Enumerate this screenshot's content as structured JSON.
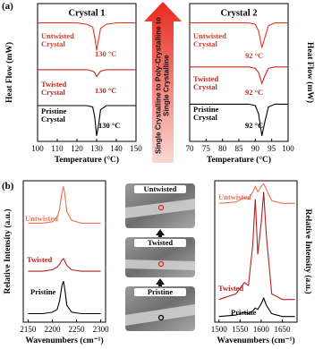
{
  "panel_labels": [
    "(a)",
    "(b)"
  ],
  "arrow_text": "Single Crystalline to Poly-Crystalline to Single Crystalline",
  "photos": {
    "items": [
      "Untwisted",
      "Twisted",
      "Pristine"
    ]
  },
  "chart_data": [
    {
      "type": "line",
      "title": "Crystal 1",
      "x_label": "Temperature (°C)",
      "y_label": "Heat Flow (mW)",
      "x": [
        100,
        110,
        120,
        125,
        128,
        129,
        130,
        131,
        132,
        135,
        140,
        150
      ],
      "xlim": [
        100,
        150
      ],
      "xticks": [
        100,
        110,
        120,
        130,
        140,
        150
      ],
      "ylim": [
        0,
        10
      ],
      "series": [
        {
          "name": "Untwisted Crystal",
          "color": "#e8321e",
          "peak_label": "130 °C",
          "values": [
            8.6,
            8.6,
            8.6,
            8.5,
            8.3,
            7.6,
            6.6,
            7.4,
            8.2,
            8.5,
            8.6,
            8.6
          ]
        },
        {
          "name": "Twisted Crystal",
          "color": "#c0281c",
          "peak_label": "130 °C",
          "values": [
            5.2,
            5.2,
            5.2,
            5.2,
            5.1,
            5.0,
            4.7,
            4.9,
            5.1,
            5.2,
            5.2,
            5.2
          ]
        },
        {
          "name": "Pristine Crystal",
          "color": "#000000",
          "peak_label": "130 °C",
          "values": [
            2.6,
            2.6,
            2.6,
            2.6,
            2.5,
            1.8,
            0.4,
            1.2,
            2.3,
            2.6,
            2.6,
            2.6
          ]
        }
      ]
    },
    {
      "type": "line",
      "title": "Crystal 2",
      "x_label": "Temperature (°C)",
      "y_label": "Heat Flow (mW)",
      "x": [
        70,
        80,
        88,
        90,
        91,
        92,
        93,
        94,
        96,
        100
      ],
      "xlim": [
        70,
        100
      ],
      "xticks": [
        70,
        75,
        80,
        85,
        90,
        95,
        100
      ],
      "ylim": [
        0,
        10
      ],
      "series": [
        {
          "name": "Untwisted Crystal",
          "color": "#e8321e",
          "peak_label": "92 °C",
          "values": [
            8.6,
            8.6,
            8.6,
            8.5,
            8.0,
            6.8,
            7.6,
            8.4,
            8.6,
            8.6
          ]
        },
        {
          "name": "Twisted Crystal",
          "color": "#c0281c",
          "peak_label": "92 °C",
          "values": [
            5.4,
            5.4,
            5.4,
            5.3,
            5.0,
            4.2,
            4.8,
            5.3,
            5.4,
            5.4
          ]
        },
        {
          "name": "Pristine Crystal",
          "color": "#000000",
          "peak_label": "92 °C",
          "values": [
            2.7,
            2.7,
            2.7,
            2.6,
            2.0,
            0.4,
            1.5,
            2.5,
            2.7,
            2.7
          ]
        }
      ]
    },
    {
      "type": "line",
      "x_label": "Wavenumbers (cm⁻¹)",
      "y_label": "Relative Intensity (a.u.)",
      "x": [
        2150,
        2180,
        2200,
        2210,
        2215,
        2220,
        2223,
        2226,
        2230,
        2240,
        2260,
        2300
      ],
      "xlim": [
        2140,
        2310
      ],
      "xticks": [
        2150,
        2200,
        2250,
        2300
      ],
      "ylim": [
        0,
        10
      ],
      "series": [
        {
          "name": "Untwisted",
          "color": "#f0704e",
          "values": [
            7.0,
            7.0,
            7.1,
            7.4,
            8.0,
            9.2,
            9.6,
            9.0,
            7.8,
            7.2,
            7.0,
            7.0
          ]
        },
        {
          "name": "Twisted",
          "color": "#b22222",
          "values": [
            3.6,
            3.6,
            3.7,
            3.9,
            4.1,
            4.4,
            4.5,
            4.3,
            4.0,
            3.7,
            3.6,
            3.6
          ]
        },
        {
          "name": "Pristine",
          "color": "#000000",
          "values": [
            0.6,
            0.6,
            0.7,
            0.9,
            1.5,
            2.6,
            2.9,
            2.3,
            1.2,
            0.7,
            0.6,
            0.6
          ]
        }
      ]
    },
    {
      "type": "line",
      "x_label": "Wavenumbers (cm⁻¹)",
      "y_label": "Relative Intensity (a.u.)",
      "x": [
        1500,
        1540,
        1560,
        1570,
        1580,
        1586,
        1592,
        1600,
        1606,
        1612,
        1625,
        1650,
        1680
      ],
      "xlim": [
        1490,
        1685
      ],
      "xticks": [
        1500,
        1550,
        1600,
        1650
      ],
      "ylim": [
        0,
        10
      ],
      "series": [
        {
          "name": "Untwisted",
          "color": "#f0704e",
          "values": [
            8.4,
            8.5,
            8.8,
            8.7,
            9.2,
            9.6,
            9.2,
            9.6,
            9.8,
            9.4,
            8.6,
            8.4,
            8.4
          ]
        },
        {
          "name": "Twisted",
          "color": "#b22222",
          "values": [
            1.6,
            2.0,
            2.8,
            2.6,
            5.5,
            8.7,
            4.8,
            7.0,
            9.2,
            6.2,
            2.0,
            1.6,
            1.6
          ]
        },
        {
          "name": "Pristine",
          "color": "#000000",
          "values": [
            0.4,
            0.5,
            0.7,
            0.6,
            0.8,
            1.0,
            0.9,
            1.3,
            1.7,
            1.2,
            0.6,
            0.4,
            0.4
          ]
        }
      ]
    }
  ]
}
